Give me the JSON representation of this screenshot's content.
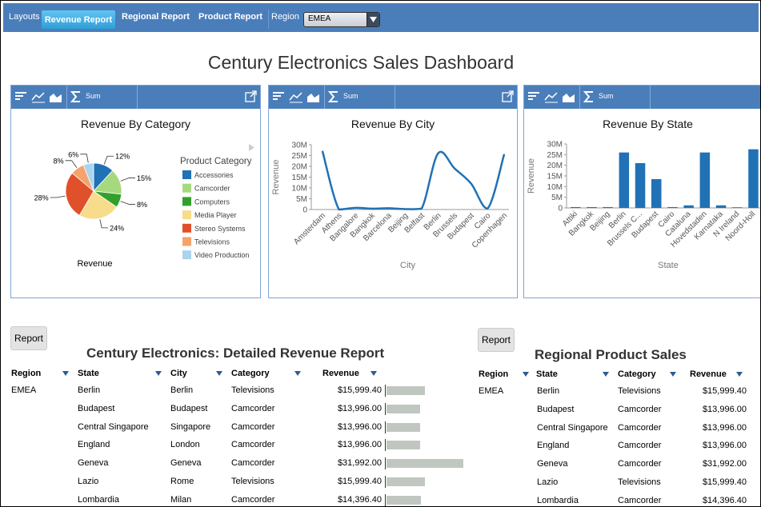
{
  "topbar": {
    "layouts_label": "Layouts",
    "tabs": [
      "Revenue Report",
      "Regional Report",
      "Product Report"
    ],
    "region_label": "Region",
    "region_value": "EMEA"
  },
  "dashboard_title": "Century Electronics Sales Dashboard",
  "toolbar": {
    "sum_label": "Sum"
  },
  "panels": {
    "category": {
      "title": "Revenue By Category",
      "legend_title": "Product Category",
      "footer": "Revenue"
    },
    "city": {
      "title": "Revenue By City",
      "xlabel": "City",
      "ylabel": "Revenue"
    },
    "state": {
      "title": "Revenue By State",
      "xlabel": "State",
      "ylabel": "Revenue"
    }
  },
  "chart_data": [
    {
      "type": "pie",
      "title": "Revenue By Category",
      "legend_title": "Product Category",
      "categories": [
        "Accessories",
        "Camcorder",
        "Computers",
        "Media Player",
        "Stereo Systems",
        "Televisions",
        "Video Production"
      ],
      "values": [
        12,
        15,
        8,
        24,
        28,
        8,
        6
      ],
      "labels": [
        "12%",
        "15%",
        "8%",
        "24%",
        "28%",
        "8%",
        "6%"
      ],
      "colors": [
        "#2171b5",
        "#a6d97e",
        "#33a02c",
        "#f7dc8b",
        "#e0502a",
        "#f5a36b",
        "#a8d4ef"
      ],
      "legend_position": "right"
    },
    {
      "type": "line",
      "title": "Revenue By City",
      "xlabel": "City",
      "ylabel": "Revenue",
      "categories": [
        "Amsterdam",
        "Athens",
        "Bangalore",
        "Bangkok",
        "Barcelona",
        "Beijing",
        "Belfast",
        "Berlin",
        "Brussels",
        "Budapest",
        "Cairo",
        "Copenhagen"
      ],
      "values": [
        27000000,
        0,
        800000,
        400000,
        600000,
        200000,
        400000,
        26000000,
        19000000,
        12000000,
        500000,
        25500000
      ],
      "yticks": [
        "0",
        "5M",
        "10M",
        "15M",
        "20M",
        "25M",
        "30M"
      ],
      "ylim": [
        0,
        30000000
      ],
      "color": "#2171b5"
    },
    {
      "type": "bar",
      "title": "Revenue By State",
      "xlabel": "State",
      "ylabel": "Revenue",
      "categories": [
        "Attiki",
        "Bangkok",
        "Beijing",
        "Berlin",
        "Brussels C...",
        "Budapest",
        "Cairo",
        "Cataluna",
        "Hovedstaden",
        "Karnataka",
        "N Ireland",
        "Noord-Holl"
      ],
      "values": [
        400000,
        400000,
        400000,
        26000000,
        21000000,
        13500000,
        400000,
        1200000,
        26000000,
        1200000,
        300000,
        27500000
      ],
      "yticks": [
        "0",
        "5M",
        "10M",
        "15M",
        "20M",
        "25M",
        "30M"
      ],
      "ylim": [
        0,
        30000000
      ],
      "color": "#2171b5"
    }
  ],
  "detail_report": {
    "button": "Report",
    "title": "Century Electronics: Detailed Revenue Report",
    "columns": [
      "Region",
      "State",
      "City",
      "Category",
      "Revenue"
    ],
    "rows": [
      [
        "EMEA",
        "Berlin",
        "Berlin",
        "Televisions",
        "$15,999.40"
      ],
      [
        "",
        "Budapest",
        "Budapest",
        "Camcorder",
        "$13,996.00"
      ],
      [
        "",
        "Central Singapore",
        "Singapore",
        "Camcorder",
        "$13,996.00"
      ],
      [
        "",
        "England",
        "London",
        "Camcorder",
        "$13,996.00"
      ],
      [
        "",
        "Geneva",
        "Geneva",
        "Camcorder",
        "$31,992.00"
      ],
      [
        "",
        "Lazio",
        "Rome",
        "Televisions",
        "$15,999.40"
      ],
      [
        "",
        "Lombardia",
        "Milan",
        "Camcorder",
        "$14,396.40"
      ]
    ],
    "revenue_values": [
      15999.4,
      13996.0,
      13996.0,
      13996.0,
      31992.0,
      15999.4,
      14396.4
    ]
  },
  "regional_report": {
    "button": "Report",
    "title": "Regional Product Sales",
    "columns": [
      "Region",
      "State",
      "Category",
      "Revenue"
    ],
    "rows": [
      [
        "EMEA",
        "Berlin",
        "Televisions",
        "$15,999.40"
      ],
      [
        "",
        "Budapest",
        "Camcorder",
        "$13,996.00"
      ],
      [
        "",
        "Central Singapore",
        "Camcorder",
        "$13,996.00"
      ],
      [
        "",
        "England",
        "Camcorder",
        "$13,996.00"
      ],
      [
        "",
        "Geneva",
        "Camcorder",
        "$31,992.00"
      ],
      [
        "",
        "Lazio",
        "Televisions",
        "$15,999.40"
      ],
      [
        "",
        "Lombardia",
        "Camcorder",
        "$14,396.40"
      ]
    ]
  }
}
